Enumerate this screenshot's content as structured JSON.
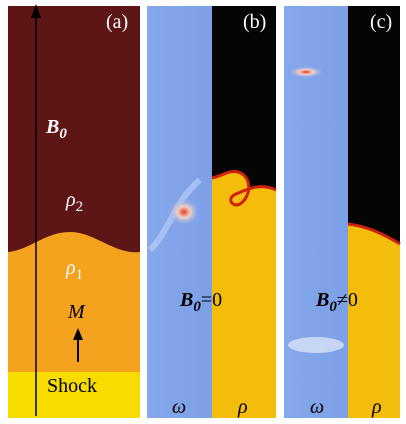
{
  "panels": [
    {
      "label": "(a)",
      "field": {
        "symbol": "B",
        "subscript": "0"
      },
      "upper_density": {
        "symbol": "ρ",
        "subscript": "2"
      },
      "lower_density": {
        "symbol": "ρ",
        "subscript": "1"
      },
      "mach": "M",
      "shock": "Shock"
    },
    {
      "label": "(b)",
      "condition": {
        "symbol": "B",
        "subscript": "0",
        "relation": "=0"
      },
      "left": "ω",
      "right": "ρ"
    },
    {
      "label": "(c)",
      "condition": {
        "symbol": "B",
        "subscript": "0",
        "relation": "≠0"
      },
      "left": "ω",
      "right": "ρ"
    }
  ]
}
